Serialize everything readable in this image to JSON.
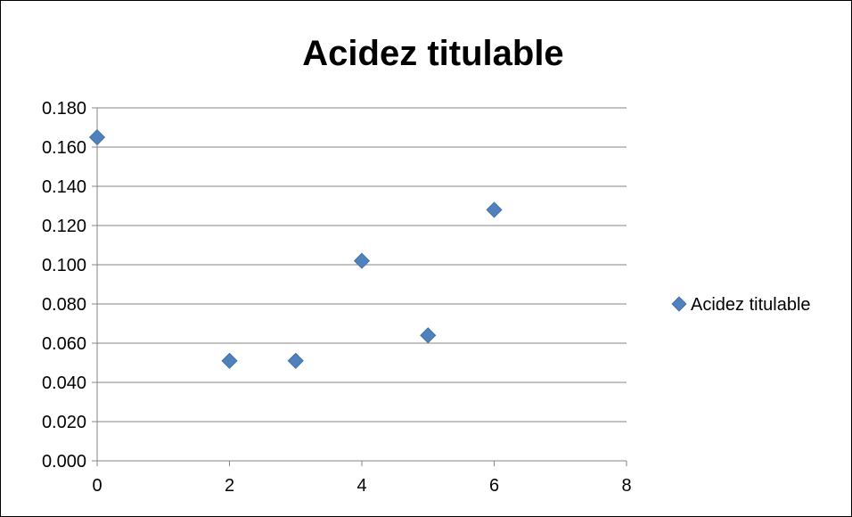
{
  "chart_data": {
    "type": "scatter",
    "title": "Acidez titulable",
    "xlabel": "",
    "ylabel": "",
    "xlim": [
      0,
      8
    ],
    "ylim": [
      0,
      0.18
    ],
    "x_ticks": [
      "0",
      "2",
      "4",
      "6",
      "8"
    ],
    "y_ticks": [
      "0.000",
      "0.020",
      "0.040",
      "0.060",
      "0.080",
      "0.100",
      "0.120",
      "0.140",
      "0.160",
      "0.180"
    ],
    "grid": true,
    "legend_position": "right",
    "series": [
      {
        "name": "Acidez titulable",
        "color": "#4F81BD",
        "marker": "diamond",
        "x": [
          0,
          2,
          3,
          4,
          5,
          6
        ],
        "y": [
          0.165,
          0.051,
          0.051,
          0.102,
          0.064,
          0.128
        ]
      }
    ]
  }
}
